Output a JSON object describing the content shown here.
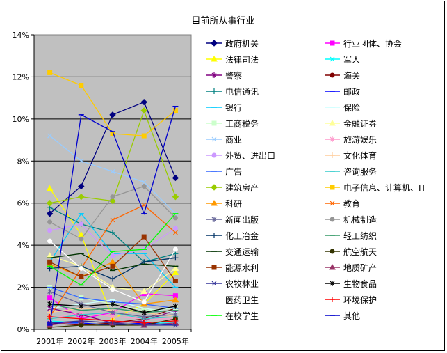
{
  "chart_data": {
    "type": "line",
    "title": "目前所从事行业",
    "x": [
      "2001年",
      "2002年",
      "2003年",
      "2004年",
      "2005年"
    ],
    "ylim": [
      0,
      14
    ],
    "yticks": [
      0,
      2,
      4,
      6,
      8,
      10,
      12,
      14
    ],
    "y_tick_labels": [
      "0%",
      "2%",
      "4%",
      "6%",
      "8%",
      "10%",
      "12%",
      "14%"
    ],
    "grid": true,
    "plot_background": "#c0c0c0",
    "legend_position": "right",
    "series": [
      {
        "name": "政府机关",
        "color": "#000080",
        "marker": "diamond",
        "values": [
          5.5,
          6.8,
          10.2,
          10.8,
          7.2
        ]
      },
      {
        "name": "行业团体、协会",
        "color": "#ff00ff",
        "marker": "square",
        "values": [
          1.5,
          0.5,
          0.8,
          1.7,
          1.6
        ]
      },
      {
        "name": "法律司法",
        "color": "#ffff00",
        "marker": "triangle",
        "values": [
          6.7,
          4.5,
          0.5,
          1.2,
          2.7
        ]
      },
      {
        "name": "军人",
        "color": "#00ffff",
        "marker": "x",
        "values": [
          0.4,
          0.3,
          0.2,
          0.3,
          0.3
        ]
      },
      {
        "name": "警察",
        "color": "#800080",
        "marker": "star",
        "values": [
          1.0,
          0.7,
          0.3,
          0.4,
          0.9
        ]
      },
      {
        "name": "海关",
        "color": "#800000",
        "marker": "circle",
        "values": [
          0.3,
          0.2,
          0.3,
          0.5,
          1.0
        ]
      },
      {
        "name": "电信通讯",
        "color": "#008080",
        "marker": "plus",
        "values": [
          5.8,
          5.0,
          4.6,
          3.2,
          3.6
        ]
      },
      {
        "name": "邮政",
        "color": "#0000ff",
        "marker": "dash",
        "values": [
          0.3,
          0.3,
          0.2,
          0.3,
          0.2
        ]
      },
      {
        "name": "银行",
        "color": "#00ccff",
        "marker": "dash",
        "values": [
          3.2,
          5.5,
          3.6,
          3.6,
          2.0
        ]
      },
      {
        "name": "保险",
        "color": "#ccffff",
        "marker": "dash",
        "values": [
          1.0,
          1.2,
          1.4,
          1.0,
          0.8
        ]
      },
      {
        "name": "工商税务",
        "color": "#ccffcc",
        "marker": "square",
        "values": [
          2.0,
          1.5,
          1.2,
          0.9,
          1.0
        ]
      },
      {
        "name": "金融证券",
        "color": "#ffff99",
        "marker": "triangle",
        "values": [
          3.5,
          3.0,
          2.0,
          1.8,
          2.9
        ]
      },
      {
        "name": "商业",
        "color": "#99ccff",
        "marker": "x",
        "values": [
          9.2,
          8.0,
          7.5,
          7.0,
          5.5
        ]
      },
      {
        "name": "旅游娱乐",
        "color": "#ff99cc",
        "marker": "star",
        "values": [
          0.5,
          0.8,
          0.6,
          0.5,
          0.5
        ]
      },
      {
        "name": "外贸、进出口",
        "color": "#cc99ff",
        "marker": "circle",
        "values": [
          4.7,
          5.0,
          3.5,
          3.8,
          4.8
        ]
      },
      {
        "name": "文化体育",
        "color": "#ffcc99",
        "marker": "plus",
        "values": [
          0.8,
          1.0,
          0.9,
          0.8,
          0.6
        ]
      },
      {
        "name": "广告",
        "color": "#3366ff",
        "marker": "dash",
        "values": [
          2.0,
          1.5,
          1.3,
          1.2,
          1.0
        ]
      },
      {
        "name": "咨询服务",
        "color": "#33cccc",
        "marker": "dash",
        "values": [
          0.5,
          0.7,
          0.8,
          0.5,
          0.6
        ]
      },
      {
        "name": "建筑房产",
        "color": "#99cc00",
        "marker": "diamond",
        "values": [
          6.0,
          6.3,
          6.1,
          10.4,
          6.3
        ]
      },
      {
        "name": "电子信息、计算机、IT",
        "color": "#ffcc00",
        "marker": "square",
        "values": [
          12.2,
          11.6,
          9.3,
          9.2,
          10.4
        ]
      },
      {
        "name": "科研",
        "color": "#ff9900",
        "marker": "triangle",
        "values": [
          3.1,
          2.5,
          3.2,
          1.2,
          1.4
        ]
      },
      {
        "name": "教育",
        "color": "#ff6600",
        "marker": "x",
        "values": [
          0.6,
          2.9,
          5.2,
          5.9,
          4.6
        ]
      },
      {
        "name": "新闻出版",
        "color": "#666699",
        "marker": "star",
        "values": [
          1.8,
          1.2,
          0.8,
          0.6,
          0.7
        ]
      },
      {
        "name": "机械制造",
        "color": "#969696",
        "marker": "circle",
        "values": [
          5.1,
          4.3,
          6.3,
          6.8,
          5.3
        ]
      },
      {
        "name": "化工冶金",
        "color": "#003366",
        "marker": "plus",
        "values": [
          2.9,
          3.0,
          2.4,
          3.2,
          3.4
        ]
      },
      {
        "name": "轻工纺织",
        "color": "#339966",
        "marker": "dash",
        "values": [
          1.2,
          0.9,
          1.0,
          0.8,
          0.9
        ]
      },
      {
        "name": "交通运输",
        "color": "#003300",
        "marker": "dash",
        "values": [
          3.4,
          3.6,
          2.8,
          3.1,
          3.0
        ]
      },
      {
        "name": "航空航天",
        "color": "#333300",
        "marker": "circle",
        "values": [
          0.1,
          0.2,
          0.2,
          0.2,
          0.5
        ]
      },
      {
        "name": "能源水利",
        "color": "#993300",
        "marker": "square",
        "values": [
          3.2,
          2.5,
          3.0,
          4.4,
          2.3
        ]
      },
      {
        "name": "地质矿产",
        "color": "#993366",
        "marker": "triangle",
        "values": [
          0.2,
          0.4,
          0.3,
          0.2,
          0.3
        ]
      },
      {
        "name": "农牧林业",
        "color": "#333399",
        "marker": "x",
        "values": [
          0.3,
          0.4,
          0.3,
          0.2,
          0.2
        ]
      },
      {
        "name": "生物食品",
        "color": "#000000",
        "marker": "star",
        "values": [
          1.2,
          1.1,
          1.2,
          0.8,
          1.1
        ]
      },
      {
        "name": "医药卫生",
        "color": "#ffffff",
        "marker": "circle",
        "values": [
          4.2,
          2.9,
          1.9,
          1.3,
          3.8
        ]
      },
      {
        "name": "环境保护",
        "color": "#ff0000",
        "marker": "plus",
        "values": [
          0.6,
          0.5,
          0.4,
          0.3,
          0.4
        ]
      },
      {
        "name": "在校学生",
        "color": "#00ff00",
        "marker": "dash",
        "values": [
          3.0,
          2.1,
          3.7,
          3.8,
          5.5
        ]
      },
      {
        "name": "其他",
        "color": "#0000cc",
        "marker": "dash",
        "values": [
          0.2,
          10.2,
          9.4,
          5.5,
          10.6
        ]
      }
    ]
  }
}
